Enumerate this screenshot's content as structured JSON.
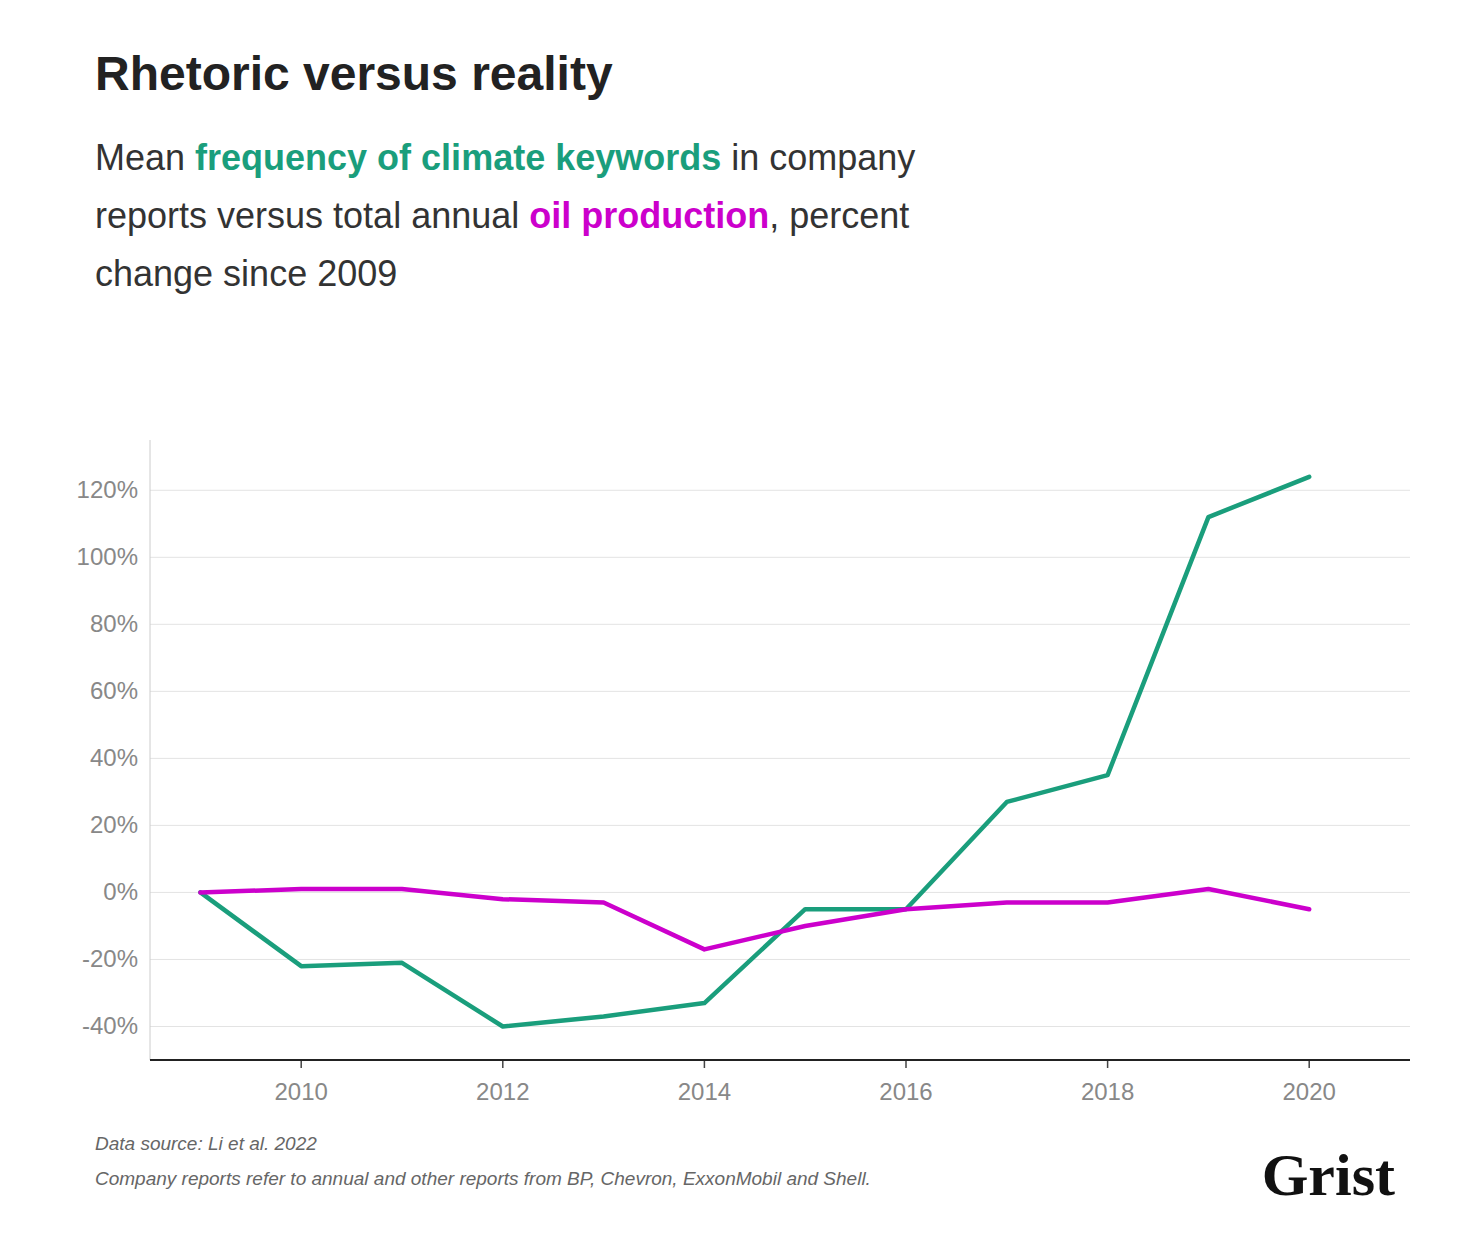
{
  "chart_data": {
    "type": "line",
    "title": "Rhetoric versus reality",
    "subtitle": "Mean frequency of climate keywords in company reports versus total annual oil production, percent change since 2009",
    "x": [
      2009,
      2010,
      2011,
      2012,
      2013,
      2014,
      2015,
      2016,
      2017,
      2018,
      2019,
      2020
    ],
    "series": [
      {
        "name": "frequency of climate keywords",
        "color": "#1a9e7c",
        "values": [
          0,
          -22,
          -21,
          -40,
          -37,
          -33,
          -5,
          -5,
          27,
          35,
          112,
          124
        ]
      },
      {
        "name": "oil production",
        "color": "#cc00cc",
        "values": [
          0,
          1,
          1,
          -2,
          -3,
          -17,
          -10,
          -5,
          -3,
          -3,
          1,
          -5
        ]
      }
    ],
    "xlim": [
      2008.5,
      2021.0
    ],
    "ylim": [
      -50,
      135
    ],
    "xticks": [
      2010,
      2012,
      2014,
      2016,
      2018,
      2020
    ],
    "yticks": [
      {
        "value": -40,
        "label": "-40%"
      },
      {
        "value": -20,
        "label": "-20%"
      },
      {
        "value": 0,
        "label": "0%"
      },
      {
        "value": 20,
        "label": "20%"
      },
      {
        "value": 40,
        "label": "40%"
      },
      {
        "value": 60,
        "label": "60%"
      },
      {
        "value": 80,
        "label": "80%"
      },
      {
        "value": 100,
        "label": "100%"
      },
      {
        "value": 120,
        "label": "120%"
      }
    ],
    "grid": true,
    "annotations": [
      "Data source: Li et al. 2022",
      "Company reports refer to annual and other reports from BP, Chevron, ExxonMobil and Shell.",
      "Grist"
    ]
  }
}
